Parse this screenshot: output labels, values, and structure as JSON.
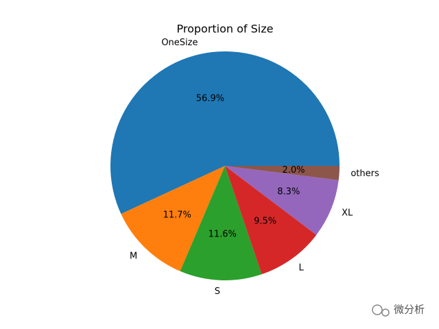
{
  "chart_data": {
    "type": "pie",
    "title": "Proportion of Size",
    "categories": [
      "OneSize",
      "M",
      "S",
      "L",
      "XL",
      "others"
    ],
    "values": [
      56.9,
      11.7,
      11.6,
      9.5,
      8.3,
      2.0
    ],
    "value_labels": [
      "56.9%",
      "11.7%",
      "11.6%",
      "9.5%",
      "8.3%",
      "2.0%"
    ],
    "colors": [
      "#1f77b4",
      "#ff7f0e",
      "#2ca02c",
      "#d62728",
      "#9467bd",
      "#8c564b"
    ],
    "watermark": "微分析"
  }
}
